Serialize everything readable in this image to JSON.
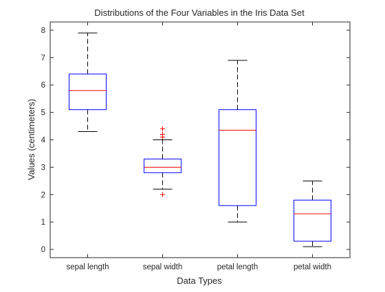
{
  "chart_data": {
    "type": "box",
    "title": "Distributions of the Four Variables in the Iris Data Set",
    "xlabel": "Data Types",
    "ylabel": "Values (centimeters)",
    "ylim": [
      -0.3,
      8.3
    ],
    "yticks": [
      0,
      1,
      2,
      3,
      4,
      5,
      6,
      7,
      8
    ],
    "grid": false,
    "legend": "none",
    "categories": [
      "sepal length",
      "sepal width",
      "petal length",
      "petal width"
    ],
    "boxes": [
      {
        "category": "sepal length",
        "whisker_low": 4.3,
        "q1": 5.1,
        "median": 5.8,
        "q3": 6.4,
        "whisker_high": 7.9,
        "outliers": []
      },
      {
        "category": "sepal width",
        "whisker_low": 2.2,
        "q1": 2.8,
        "median": 3.0,
        "q3": 3.3,
        "whisker_high": 4.0,
        "outliers": [
          2.0,
          4.1,
          4.2,
          4.4
        ]
      },
      {
        "category": "petal length",
        "whisker_low": 1.0,
        "q1": 1.6,
        "median": 4.35,
        "q3": 5.1,
        "whisker_high": 6.9,
        "outliers": []
      },
      {
        "category": "petal width",
        "whisker_low": 0.1,
        "q1": 0.3,
        "median": 1.3,
        "q3": 1.8,
        "whisker_high": 2.5,
        "outliers": []
      }
    ],
    "colors": {
      "box": "#0000ff",
      "median": "#ff0000",
      "whisker": "#000000",
      "outlier": "#ff0000",
      "axes": "#262626"
    }
  }
}
